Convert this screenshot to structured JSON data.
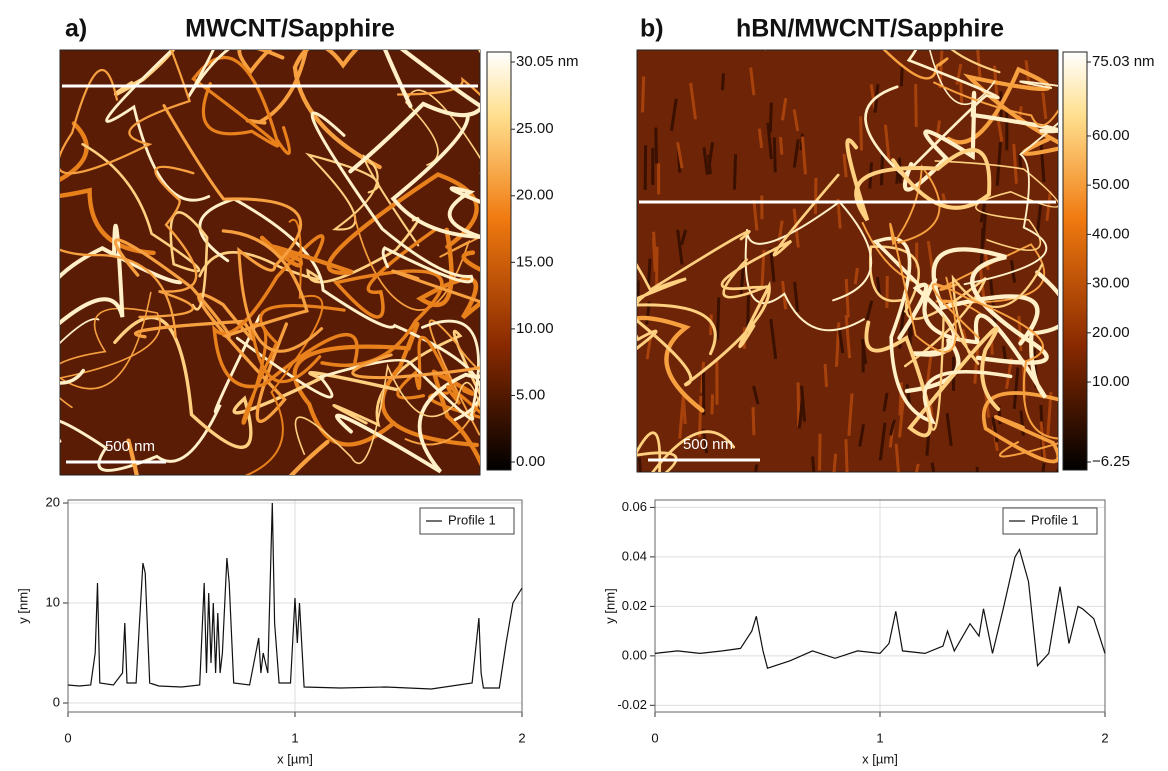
{
  "panels": [
    {
      "label": "a)",
      "title": "MWCNT/Sapphire",
      "scale_bar": "500 nm",
      "colorbar": {
        "ticks": [
          {
            "value": 30.05,
            "label": "30.05 nm"
          },
          {
            "value": 25,
            "label": "25.00"
          },
          {
            "value": 20,
            "label": "20.00"
          },
          {
            "value": 15,
            "label": "15.00"
          },
          {
            "value": 10,
            "label": "10.00"
          },
          {
            "value": 5,
            "label": "5.00"
          },
          {
            "value": 0,
            "label": "0.00"
          }
        ]
      }
    },
    {
      "label": "b)",
      "title": "hBN/MWCNT/Sapphire",
      "scale_bar": "500 nm",
      "colorbar": {
        "ticks": [
          {
            "value": 75.03,
            "label": "75.03 nm"
          },
          {
            "value": 60,
            "label": "60.00"
          },
          {
            "value": 50,
            "label": "50.00"
          },
          {
            "value": 40,
            "label": "40.00"
          },
          {
            "value": 30,
            "label": "30.00"
          },
          {
            "value": 20,
            "label": "20.00"
          },
          {
            "value": 10,
            "label": "10.00"
          },
          {
            "value": -6.25,
            "label": "−6.25"
          }
        ]
      }
    }
  ],
  "chart_data": [
    {
      "type": "line",
      "xlabel": "x [µm]",
      "ylabel": "y [nm]",
      "xlim": [
        0,
        2
      ],
      "ylim": [
        -0.9,
        20.3
      ],
      "xticks": [
        0,
        1,
        2
      ],
      "yticks": [
        0,
        10,
        20
      ],
      "grid": true,
      "legend": "upper right",
      "x": [
        0,
        0.05,
        0.1,
        0.12,
        0.13,
        0.14,
        0.2,
        0.24,
        0.25,
        0.26,
        0.3,
        0.33,
        0.34,
        0.36,
        0.4,
        0.5,
        0.58,
        0.6,
        0.61,
        0.62,
        0.63,
        0.64,
        0.65,
        0.66,
        0.67,
        0.68,
        0.7,
        0.71,
        0.73,
        0.8,
        0.84,
        0.85,
        0.86,
        0.88,
        0.9,
        0.91,
        0.93,
        0.98,
        1.0,
        1.01,
        1.02,
        1.04,
        1.2,
        1.4,
        1.6,
        1.78,
        1.81,
        1.82,
        1.83,
        1.9,
        1.93,
        1.96,
        2.0
      ],
      "series": [
        {
          "name": "Profile 1",
          "color": "#111111",
          "values": [
            1.8,
            1.7,
            1.8,
            5,
            12,
            2,
            1.8,
            3,
            8,
            2,
            2,
            14,
            13,
            2,
            1.7,
            1.6,
            1.8,
            12,
            3,
            11,
            4,
            10,
            3,
            9,
            3,
            5,
            14.5,
            12,
            2,
            1.8,
            6.5,
            3,
            5,
            3,
            20,
            8,
            2,
            2,
            10.5,
            6,
            10,
            1.6,
            1.5,
            1.6,
            1.4,
            2,
            8.5,
            3,
            1.5,
            1.5,
            6,
            10,
            11.5
          ]
        }
      ]
    },
    {
      "type": "line",
      "xlabel": "x [µm]",
      "ylabel": "y [nm]",
      "xlim": [
        0,
        2
      ],
      "ylim": [
        -0.0227,
        0.063
      ],
      "xticks": [
        0,
        1,
        2
      ],
      "yticks": [
        0.06,
        0.04,
        0.02,
        {
          "value": 0,
          "label": "0.00"
        },
        -0.02
      ],
      "grid": true,
      "legend": "upper right",
      "x": [
        0,
        0.1,
        0.2,
        0.3,
        0.38,
        0.43,
        0.45,
        0.48,
        0.5,
        0.6,
        0.7,
        0.8,
        0.9,
        1.0,
        1.04,
        1.07,
        1.1,
        1.2,
        1.28,
        1.3,
        1.33,
        1.4,
        1.44,
        1.46,
        1.5,
        1.55,
        1.6,
        1.62,
        1.66,
        1.7,
        1.75,
        1.8,
        1.84,
        1.88,
        1.9,
        1.95,
        2.0
      ],
      "series": [
        {
          "name": "Profile 1",
          "color": "#111111",
          "values": [
            0.001,
            0.002,
            0.001,
            0.002,
            0.003,
            0.01,
            0.016,
            0.002,
            -0.005,
            -0.002,
            0.002,
            -0.001,
            0.002,
            0.001,
            0.005,
            0.018,
            0.002,
            0.001,
            0.004,
            0.01,
            0.002,
            0.013,
            0.008,
            0.019,
            0.001,
            0.02,
            0.04,
            0.043,
            0.03,
            -0.004,
            0.001,
            0.028,
            0.005,
            0.02,
            0.019,
            0.015,
            0.001
          ]
        }
      ]
    }
  ]
}
